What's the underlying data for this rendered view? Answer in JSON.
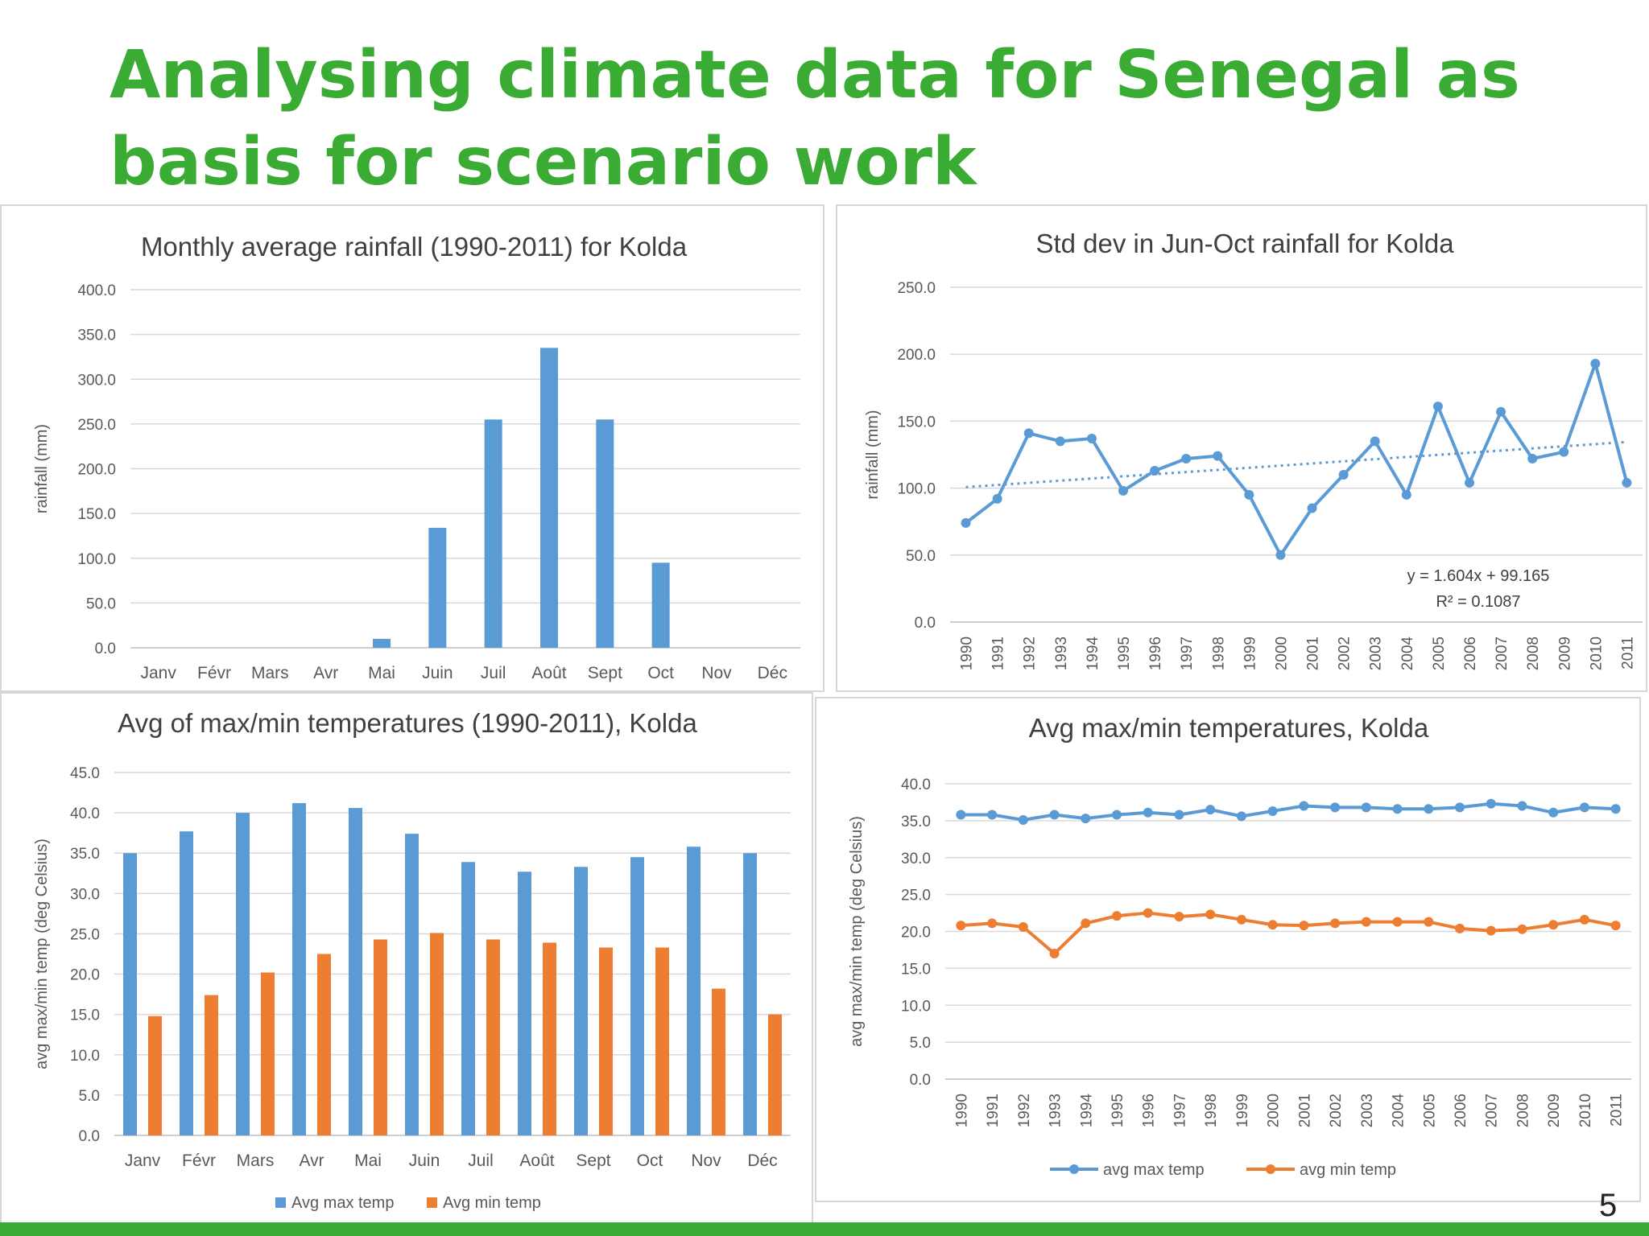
{
  "slide": {
    "title": "Analysing climate data for Senegal as basis for scenario work",
    "page_number": "5"
  },
  "colors": {
    "title": "#3aac34",
    "blue": "#5b9bd5",
    "orange": "#ed7d31"
  },
  "chart_data": [
    {
      "id": "rainfall",
      "type": "bar",
      "title": "Monthly average rainfall (1990-2011) for Kolda",
      "xlabel": "",
      "ylabel": "rainfall (mm)",
      "categories": [
        "Janv",
        "Févr",
        "Mars",
        "Avr",
        "Mai",
        "Juin",
        "Juil",
        "Août",
        "Sept",
        "Oct",
        "Nov",
        "Déc"
      ],
      "values": [
        0,
        0,
        0,
        0,
        10,
        134,
        255,
        335,
        255,
        95,
        0,
        0
      ],
      "ylim": [
        0,
        400
      ],
      "yticks": [
        "0.0",
        "50.0",
        "100.0",
        "150.0",
        "200.0",
        "250.0",
        "300.0",
        "350.0",
        "400.0"
      ],
      "grid": true,
      "legend": "none"
    },
    {
      "id": "stddev",
      "type": "line",
      "title": "Std dev in Jun-Oct rainfall  for Kolda",
      "xlabel": "",
      "ylabel": "rainfall (mm)",
      "x": [
        "1990",
        "1991",
        "1992",
        "1993",
        "1994",
        "1995",
        "1996",
        "1997",
        "1998",
        "1999",
        "2000",
        "2001",
        "2002",
        "2003",
        "2004",
        "2005",
        "2006",
        "2007",
        "2008",
        "2009",
        "2010",
        "2011"
      ],
      "values": [
        74,
        92,
        141,
        135,
        137,
        98,
        113,
        122,
        124,
        95,
        50,
        85,
        110,
        135,
        95,
        161,
        104,
        157,
        122,
        127,
        193,
        104
      ],
      "trendline": {
        "slope": 1.604,
        "intercept": 99.165
      },
      "annotations": [
        "y = 1.604x + 99.165",
        "R² = 0.1087"
      ],
      "ylim": [
        0,
        250
      ],
      "yticks": [
        "0.0",
        "50.0",
        "100.0",
        "150.0",
        "200.0",
        "250.0"
      ],
      "grid": true,
      "legend": "none"
    },
    {
      "id": "temp-bars",
      "type": "bar",
      "title": "Avg of max/min temperatures (1990-2011), Kolda",
      "xlabel": "",
      "ylabel": "avg max/min temp (deg Celsius)",
      "categories": [
        "Janv",
        "Févr",
        "Mars",
        "Avr",
        "Mai",
        "Juin",
        "Juil",
        "Août",
        "Sept",
        "Oct",
        "Nov",
        "Déc"
      ],
      "series": [
        {
          "name": "Avg max temp",
          "values": [
            35.0,
            37.7,
            40.0,
            41.2,
            40.6,
            37.4,
            33.9,
            32.7,
            33.3,
            34.5,
            35.8,
            35.0
          ]
        },
        {
          "name": "Avg min temp",
          "values": [
            14.8,
            17.4,
            20.2,
            22.5,
            24.3,
            25.1,
            24.3,
            23.9,
            23.3,
            23.3,
            18.2,
            15.0
          ]
        }
      ],
      "ylim": [
        0,
        45
      ],
      "yticks": [
        "0.0",
        "5.0",
        "10.0",
        "15.0",
        "20.0",
        "25.0",
        "30.0",
        "35.0",
        "40.0",
        "45.0"
      ],
      "grid": true,
      "legend": "bottom"
    },
    {
      "id": "temp-lines",
      "type": "line",
      "title": "Avg max/min temperatures, Kolda",
      "xlabel": "",
      "ylabel": "avg max/min temp (deg Celsius)",
      "x": [
        "1990",
        "1991",
        "1992",
        "1993",
        "1994",
        "1995",
        "1996",
        "1997",
        "1998",
        "1999",
        "2000",
        "2001",
        "2002",
        "2003",
        "2004",
        "2005",
        "2006",
        "2007",
        "2008",
        "2009",
        "2010",
        "2011"
      ],
      "series": [
        {
          "name": "avg max temp",
          "values": [
            35.8,
            35.8,
            35.1,
            35.8,
            35.3,
            35.8,
            36.1,
            35.8,
            36.5,
            35.6,
            36.3,
            37.0,
            36.8,
            36.8,
            36.6,
            36.6,
            36.8,
            37.3,
            37.0,
            36.1,
            36.8,
            36.6
          ]
        },
        {
          "name": "avg min temp",
          "values": [
            20.8,
            21.1,
            20.6,
            17.0,
            21.1,
            22.1,
            22.5,
            22.0,
            22.3,
            21.6,
            20.9,
            20.8,
            21.1,
            21.3,
            21.3,
            21.3,
            20.4,
            20.1,
            20.3,
            20.9,
            21.6,
            20.8
          ]
        }
      ],
      "ylim": [
        0,
        40
      ],
      "yticks": [
        "0.0",
        "5.0",
        "10.0",
        "15.0",
        "20.0",
        "25.0",
        "30.0",
        "35.0",
        "40.0"
      ],
      "grid": true,
      "legend": "bottom"
    }
  ]
}
